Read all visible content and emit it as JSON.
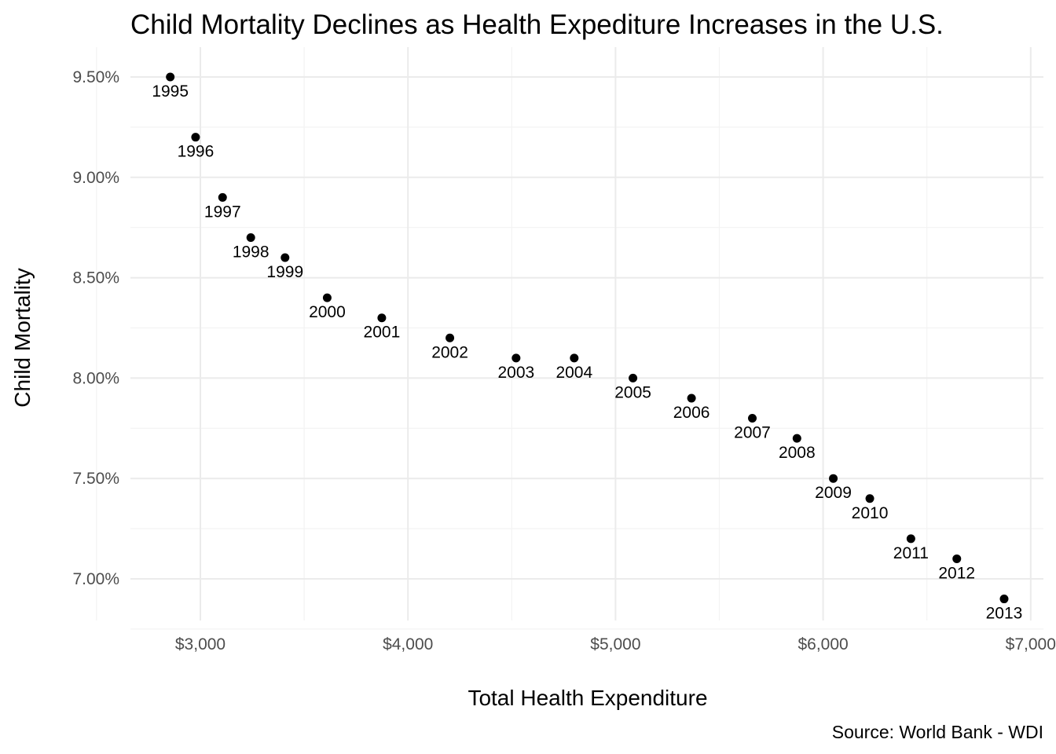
{
  "chart_data": {
    "type": "scatter",
    "title": "Child Mortality Declines as Health Expediture Increases in the U.S.",
    "xlabel": "Total Health Expenditure",
    "ylabel": "Child Mortality",
    "caption": "Source: World Bank - WDI",
    "xlim": [
      2650,
      7050
    ],
    "ylim": [
      6.8,
      9.55
    ],
    "x_ticks": [
      3000,
      4000,
      5000,
      6000,
      7000
    ],
    "x_tick_labels": [
      "$3,000",
      "$4,000",
      "$5,000",
      "$6,000",
      "$7,000"
    ],
    "y_ticks": [
      7.0,
      7.5,
      8.0,
      8.5,
      9.0,
      9.5
    ],
    "y_tick_labels": [
      "7.00%",
      "7.50%",
      "8.00%",
      "8.50%",
      "9.00%",
      "9.50%"
    ],
    "grid": true,
    "legend": "none",
    "point_color": "#000000",
    "points": [
      {
        "label": "1995",
        "x": 2855,
        "y": 9.5
      },
      {
        "label": "1996",
        "x": 2977,
        "y": 9.2
      },
      {
        "label": "1997",
        "x": 3107,
        "y": 8.9
      },
      {
        "label": "1998",
        "x": 3243,
        "y": 8.7
      },
      {
        "label": "1999",
        "x": 3408,
        "y": 8.6
      },
      {
        "label": "2000",
        "x": 3611,
        "y": 8.4
      },
      {
        "label": "2001",
        "x": 3874,
        "y": 8.3
      },
      {
        "label": "2002",
        "x": 4202,
        "y": 8.2
      },
      {
        "label": "2003",
        "x": 4521,
        "y": 8.1
      },
      {
        "label": "2004",
        "x": 4801,
        "y": 8.1
      },
      {
        "label": "2005",
        "x": 5084,
        "y": 8.0
      },
      {
        "label": "2006",
        "x": 5366,
        "y": 7.9
      },
      {
        "label": "2007",
        "x": 5659,
        "y": 7.8
      },
      {
        "label": "2008",
        "x": 5874,
        "y": 7.7
      },
      {
        "label": "2009",
        "x": 6049,
        "y": 7.5
      },
      {
        "label": "2010",
        "x": 6225,
        "y": 7.4
      },
      {
        "label": "2011",
        "x": 6423,
        "y": 7.2
      },
      {
        "label": "2012",
        "x": 6644,
        "y": 7.1
      },
      {
        "label": "2013",
        "x": 6872,
        "y": 6.9
      }
    ]
  }
}
